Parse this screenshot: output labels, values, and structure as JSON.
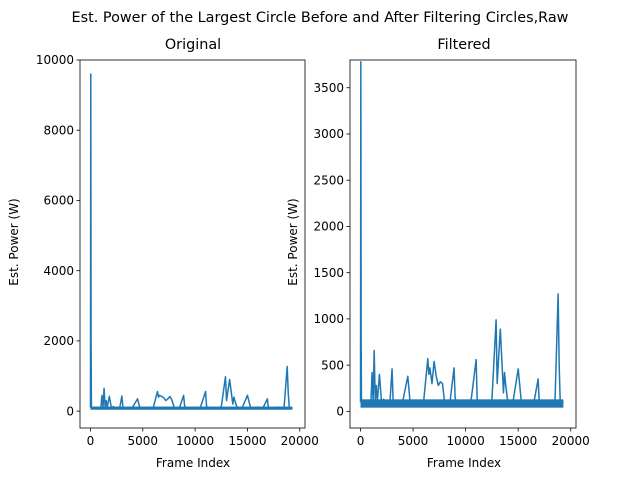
{
  "figure": {
    "suptitle": "Est. Power of the Largest Circle Before and After Filtering Circles,Raw",
    "background": "#ffffff",
    "line_color": "#1f77b4"
  },
  "chart_data": [
    {
      "type": "line",
      "title": "Original",
      "xlabel": "Frame Index",
      "ylabel": "Est. Power (W)",
      "xlim": [
        -1000,
        20500
      ],
      "ylim": [
        -480,
        10000
      ],
      "xticks": [
        0,
        5000,
        10000,
        15000,
        20000
      ],
      "xtick_labels": [
        "0",
        "5000",
        "10000",
        "15000",
        "20000"
      ],
      "yticks": [
        0,
        2000,
        4000,
        6000,
        8000,
        10000
      ],
      "ytick_labels": [
        "0",
        "2000",
        "4000",
        "6000",
        "8000",
        "10000"
      ],
      "grid": false,
      "series": [
        {
          "x": [
            0,
            30,
            60,
            90,
            120,
            200,
            400,
            600,
            800,
            1000,
            1100,
            1200,
            1300,
            1400,
            1500,
            1600,
            1800,
            2000,
            2200,
            2400,
            2600,
            2800,
            3000,
            3100,
            3200,
            3400,
            3600,
            3800,
            4000,
            4500,
            4700,
            4800,
            5000,
            5500,
            6000,
            6400,
            6500,
            6600,
            6800,
            7000,
            7200,
            7400,
            7600,
            7800,
            8000,
            8500,
            8900,
            9000,
            9100,
            9500,
            10000,
            10500,
            11000,
            11100,
            11500,
            12000,
            12500,
            12900,
            13000,
            13100,
            13300,
            13600,
            13700,
            13800,
            14000,
            14500,
            15000,
            15300,
            15500,
            16000,
            16500,
            16900,
            17000,
            17500,
            18000,
            18500,
            18800,
            18900,
            19000,
            19300
          ],
          "y": [
            100,
            9600,
            2000,
            100,
            80,
            100,
            90,
            110,
            100,
            120,
            450,
            100,
            650,
            120,
            300,
            100,
            420,
            100,
            130,
            80,
            110,
            100,
            430,
            120,
            100,
            90,
            110,
            100,
            100,
            350,
            120,
            100,
            90,
            110,
            100,
            560,
            400,
            450,
            420,
            380,
            300,
            350,
            420,
            300,
            100,
            90,
            450,
            150,
            100,
            90,
            110,
            100,
            560,
            120,
            100,
            90,
            120,
            980,
            300,
            500,
            900,
            200,
            400,
            300,
            110,
            100,
            450,
            100,
            90,
            110,
            100,
            350,
            100,
            90,
            110,
            100,
            1270,
            500,
            100,
            100
          ]
        }
      ]
    },
    {
      "type": "line",
      "title": "Filtered",
      "xlabel": "Frame Index",
      "ylabel": "Est. Power (W)",
      "xlim": [
        -1000,
        20500
      ],
      "ylim": [
        -180,
        3800
      ],
      "xticks": [
        0,
        5000,
        10000,
        15000,
        20000
      ],
      "xtick_labels": [
        "0",
        "5000",
        "10000",
        "15000",
        "20000"
      ],
      "yticks": [
        0,
        500,
        1000,
        1500,
        2000,
        2500,
        3000,
        3500
      ],
      "ytick_labels": [
        "0",
        "500",
        "1000",
        "1500",
        "2000",
        "2500",
        "3000",
        "3500"
      ],
      "grid": false,
      "series": [
        {
          "x": [
            0,
            30,
            60,
            90,
            120,
            200,
            400,
            600,
            800,
            1000,
            1100,
            1200,
            1300,
            1400,
            1500,
            1600,
            1800,
            2000,
            2200,
            2400,
            2600,
            2800,
            3000,
            3100,
            3200,
            3400,
            3600,
            3800,
            4000,
            4500,
            4700,
            4800,
            5000,
            5500,
            6000,
            6400,
            6500,
            6600,
            6800,
            7000,
            7200,
            7400,
            7600,
            7800,
            8000,
            8500,
            8900,
            9000,
            9100,
            9500,
            10000,
            10500,
            11000,
            11100,
            11500,
            12000,
            12500,
            12900,
            13000,
            13100,
            13300,
            13600,
            13700,
            13800,
            14000,
            14500,
            15000,
            15300,
            15500,
            16000,
            16500,
            16900,
            17000,
            17500,
            18000,
            18500,
            18800,
            18900,
            19000,
            19300
          ],
          "y": [
            100,
            3780,
            800,
            100,
            80,
            100,
            90,
            110,
            100,
            120,
            420,
            100,
            660,
            120,
            280,
            100,
            400,
            100,
            130,
            80,
            110,
            100,
            460,
            120,
            100,
            90,
            110,
            100,
            100,
            380,
            120,
            100,
            90,
            110,
            100,
            570,
            400,
            470,
            300,
            540,
            380,
            280,
            320,
            300,
            100,
            90,
            470,
            150,
            100,
            90,
            110,
            100,
            560,
            120,
            100,
            90,
            120,
            990,
            300,
            500,
            890,
            200,
            420,
            300,
            110,
            100,
            460,
            100,
            90,
            110,
            100,
            350,
            100,
            90,
            110,
            100,
            1270,
            500,
            100,
            100
          ]
        }
      ]
    }
  ]
}
